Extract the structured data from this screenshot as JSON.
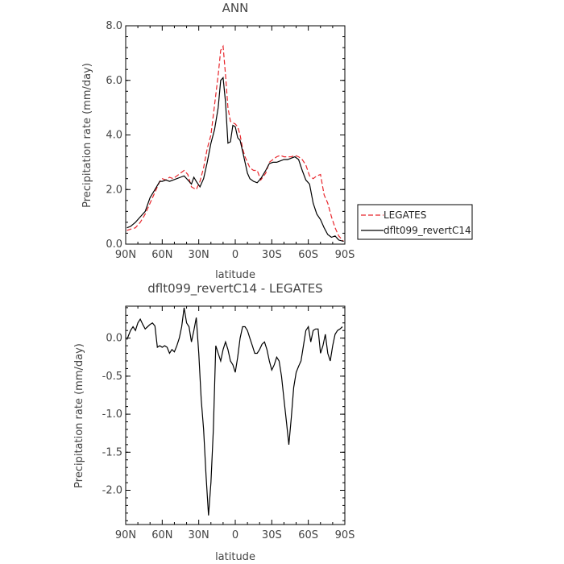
{
  "chart_data": [
    {
      "type": "line",
      "title": "ANN",
      "xlabel": "latitude",
      "ylabel": "Precipitation rate (mm/day)",
      "xlim": [
        90,
        -90
      ],
      "ylim": [
        0,
        8
      ],
      "xticks": [
        90,
        60,
        30,
        0,
        -30,
        -60,
        -90
      ],
      "xticklabels": [
        "90N",
        "60N",
        "30N",
        "0",
        "30S",
        "60S",
        "90S"
      ],
      "yticks": [
        0,
        2,
        4,
        6,
        8
      ],
      "yticklabels": [
        "0.0",
        "2.0",
        "4.0",
        "6.0",
        "8.0"
      ],
      "legend_position": "right",
      "series": [
        {
          "name": "LEGATES",
          "color": "#e8252b",
          "dash": "dashed",
          "x": [
            89,
            86,
            82,
            78,
            74,
            70,
            66,
            62,
            60,
            57,
            54,
            51,
            48,
            45,
            42,
            39,
            36,
            34,
            32,
            29,
            26,
            23,
            20,
            17,
            14,
            12,
            10,
            8,
            6,
            4,
            2,
            0,
            -2,
            -4,
            -6,
            -8,
            -10,
            -12,
            -15,
            -18,
            -21,
            -25,
            -28,
            -31,
            -34,
            -37,
            -40,
            -43,
            -46,
            -49,
            -52,
            -55,
            -58,
            -61,
            -64,
            -67,
            -70,
            -73,
            -76,
            -79,
            -82,
            -85,
            -89
          ],
          "y": [
            0.5,
            0.55,
            0.6,
            0.8,
            1.1,
            1.5,
            1.9,
            2.3,
            2.4,
            2.35,
            2.45,
            2.4,
            2.5,
            2.6,
            2.7,
            2.55,
            2.1,
            2.05,
            2.0,
            2.3,
            2.8,
            3.5,
            4.0,
            5.1,
            6.2,
            7.1,
            7.25,
            6.2,
            5.0,
            4.5,
            4.45,
            4.4,
            4.3,
            4.0,
            3.5,
            3.2,
            3.0,
            2.8,
            2.7,
            2.7,
            2.35,
            2.6,
            3.0,
            3.1,
            3.2,
            3.25,
            3.2,
            3.2,
            3.2,
            3.25,
            3.2,
            3.1,
            2.9,
            2.5,
            2.4,
            2.5,
            2.55,
            1.8,
            1.5,
            1.0,
            0.6,
            0.3,
            0.1
          ]
        },
        {
          "name": "dflt099_revertC14",
          "color": "#000000",
          "dash": "solid",
          "x": [
            89,
            86,
            82,
            78,
            74,
            70,
            66,
            62,
            60,
            57,
            54,
            51,
            48,
            45,
            42,
            39,
            36,
            34,
            32,
            29,
            26,
            23,
            20,
            17,
            14,
            12,
            10,
            8,
            6,
            4,
            2,
            0,
            -2,
            -4,
            -6,
            -8,
            -10,
            -12,
            -15,
            -18,
            -21,
            -25,
            -28,
            -31,
            -34,
            -37,
            -40,
            -43,
            -46,
            -49,
            -52,
            -55,
            -58,
            -61,
            -64,
            -67,
            -70,
            -73,
            -76,
            -79,
            -82,
            -85,
            -89
          ],
          "y": [
            0.6,
            0.65,
            0.8,
            1.0,
            1.2,
            1.7,
            2.0,
            2.3,
            2.3,
            2.35,
            2.3,
            2.35,
            2.4,
            2.45,
            2.5,
            2.35,
            2.2,
            2.45,
            2.3,
            2.1,
            2.4,
            3.0,
            3.7,
            4.2,
            5.0,
            6.0,
            6.1,
            5.2,
            3.7,
            3.75,
            4.35,
            4.3,
            3.9,
            3.8,
            3.4,
            3.0,
            2.6,
            2.4,
            2.3,
            2.25,
            2.4,
            2.7,
            2.95,
            3.0,
            3.0,
            3.05,
            3.1,
            3.1,
            3.15,
            3.2,
            3.1,
            2.7,
            2.35,
            2.2,
            1.5,
            1.1,
            0.9,
            0.6,
            0.35,
            0.25,
            0.3,
            0.15,
            0.1
          ]
        }
      ]
    },
    {
      "type": "line",
      "title": "dflt099_revertC14 - LEGATES",
      "xlabel": "latitude",
      "ylabel": "Precipitation rate (mm/day)",
      "xlim": [
        90,
        -90
      ],
      "ylim": [
        -2.45,
        0.42
      ],
      "xticks": [
        90,
        60,
        30,
        0,
        -30,
        -60,
        -90
      ],
      "xticklabels": [
        "90N",
        "60N",
        "30N",
        "0",
        "30S",
        "60S",
        "90S"
      ],
      "yticks": [
        0,
        -0.5,
        -1,
        -1.5,
        -2
      ],
      "yticklabels": [
        "0.0",
        "-0.5",
        "-1.0",
        "-1.5",
        "-2.0"
      ],
      "series": [
        {
          "color": "#000000",
          "dash": "solid",
          "x": [
            89,
            86,
            84,
            82,
            80,
            78,
            76,
            74,
            72,
            70,
            68,
            66,
            64,
            62,
            60,
            58,
            56,
            54,
            52,
            50,
            48,
            46,
            44,
            42,
            40,
            38,
            36,
            34,
            32,
            30,
            28,
            26,
            24,
            22,
            20,
            18,
            16,
            14,
            12,
            10,
            8,
            6,
            4,
            2,
            0,
            -2,
            -4,
            -6,
            -8,
            -10,
            -12,
            -14,
            -16,
            -18,
            -20,
            -22,
            -24,
            -26,
            -28,
            -30,
            -32,
            -34,
            -36,
            -38,
            -40,
            -42,
            -44,
            -46,
            -48,
            -50,
            -52,
            -54,
            -56,
            -58,
            -60,
            -62,
            -64,
            -66,
            -68,
            -70,
            -72,
            -74,
            -76,
            -78,
            -80,
            -82,
            -84,
            -86,
            -88
          ],
          "y": [
            -0.02,
            0.1,
            0.15,
            0.1,
            0.2,
            0.25,
            0.18,
            0.12,
            0.15,
            0.18,
            0.2,
            0.16,
            -0.12,
            -0.1,
            -0.12,
            -0.1,
            -0.12,
            -0.2,
            -0.15,
            -0.18,
            -0.1,
            0.0,
            0.15,
            0.4,
            0.2,
            0.15,
            -0.05,
            0.1,
            0.27,
            -0.2,
            -0.8,
            -1.2,
            -1.8,
            -2.33,
            -1.9,
            -1.2,
            -0.1,
            -0.2,
            -0.3,
            -0.15,
            -0.05,
            -0.15,
            -0.3,
            -0.35,
            -0.45,
            -0.25,
            0.0,
            0.15,
            0.15,
            0.1,
            0.0,
            -0.1,
            -0.2,
            -0.2,
            -0.15,
            -0.08,
            -0.05,
            -0.15,
            -0.3,
            -0.42,
            -0.35,
            -0.25,
            -0.3,
            -0.5,
            -0.8,
            -1.1,
            -1.4,
            -1.05,
            -0.65,
            -0.45,
            -0.37,
            -0.3,
            -0.1,
            0.1,
            0.15,
            -0.05,
            0.1,
            0.12,
            0.12,
            -0.2,
            -0.1,
            0.05,
            -0.2,
            -0.3,
            -0.1,
            0.05,
            0.1,
            0.12,
            0.15
          ]
        }
      ]
    }
  ]
}
